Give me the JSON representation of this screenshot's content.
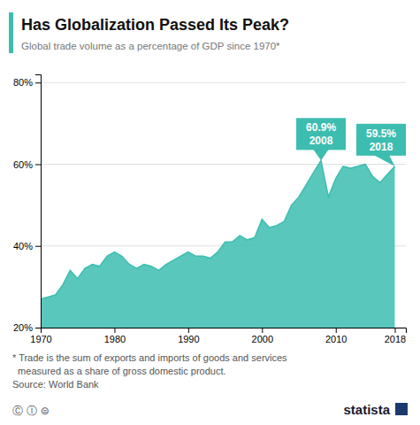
{
  "chart_data": {
    "type": "area",
    "title": "Has Globalization Passed Its Peak?",
    "subtitle": "Global trade volume as a percentage of GDP since 1970*",
    "color": "#3dbdb0",
    "x": [
      1970,
      1971,
      1972,
      1973,
      1974,
      1975,
      1976,
      1977,
      1978,
      1979,
      1980,
      1981,
      1982,
      1983,
      1984,
      1985,
      1986,
      1987,
      1988,
      1989,
      1990,
      1991,
      1992,
      1993,
      1994,
      1995,
      1996,
      1997,
      1998,
      1999,
      2000,
      2001,
      2002,
      2003,
      2004,
      2005,
      2006,
      2007,
      2008,
      2009,
      2010,
      2011,
      2012,
      2013,
      2014,
      2015,
      2016,
      2017,
      2018
    ],
    "values": [
      27.0,
      27.5,
      28.0,
      30.5,
      34.0,
      32.0,
      34.5,
      35.5,
      35.0,
      37.5,
      38.5,
      37.5,
      35.5,
      34.5,
      35.5,
      35.0,
      34.0,
      35.5,
      36.5,
      37.5,
      38.5,
      37.5,
      37.5,
      37.0,
      38.5,
      41.0,
      41.0,
      42.5,
      41.5,
      42.0,
      46.5,
      44.5,
      45.0,
      46.0,
      50.0,
      52.0,
      55.0,
      58.0,
      60.9,
      52.0,
      56.5,
      59.5,
      59.0,
      59.5,
      60.0,
      57.0,
      55.5,
      57.5,
      59.5
    ],
    "xlim": [
      1970,
      2019.5
    ],
    "xticks": [
      1970,
      1980,
      1990,
      2000,
      2010,
      2018
    ],
    "ylim": [
      20,
      82
    ],
    "yticks": [
      {
        "value": 20,
        "label": "20%"
      },
      {
        "value": 40,
        "label": "40%"
      },
      {
        "value": 60,
        "label": "60%"
      },
      {
        "value": 80,
        "label": "80%"
      }
    ],
    "grid": true,
    "annotations": [
      {
        "x": 2008,
        "y": 60.9,
        "label": "60.9%",
        "sublabel": "2008"
      },
      {
        "x": 2018,
        "y": 59.5,
        "label": "59.5%",
        "sublabel": "2018"
      }
    ],
    "footnotes": [
      "* Trade is the sum of exports and imports of goods and services",
      "  measured as a share of gross domestic product.",
      "Source: World Bank"
    ],
    "logo": "statista",
    "license": "Ⓒ Ⓘ ⊜"
  }
}
